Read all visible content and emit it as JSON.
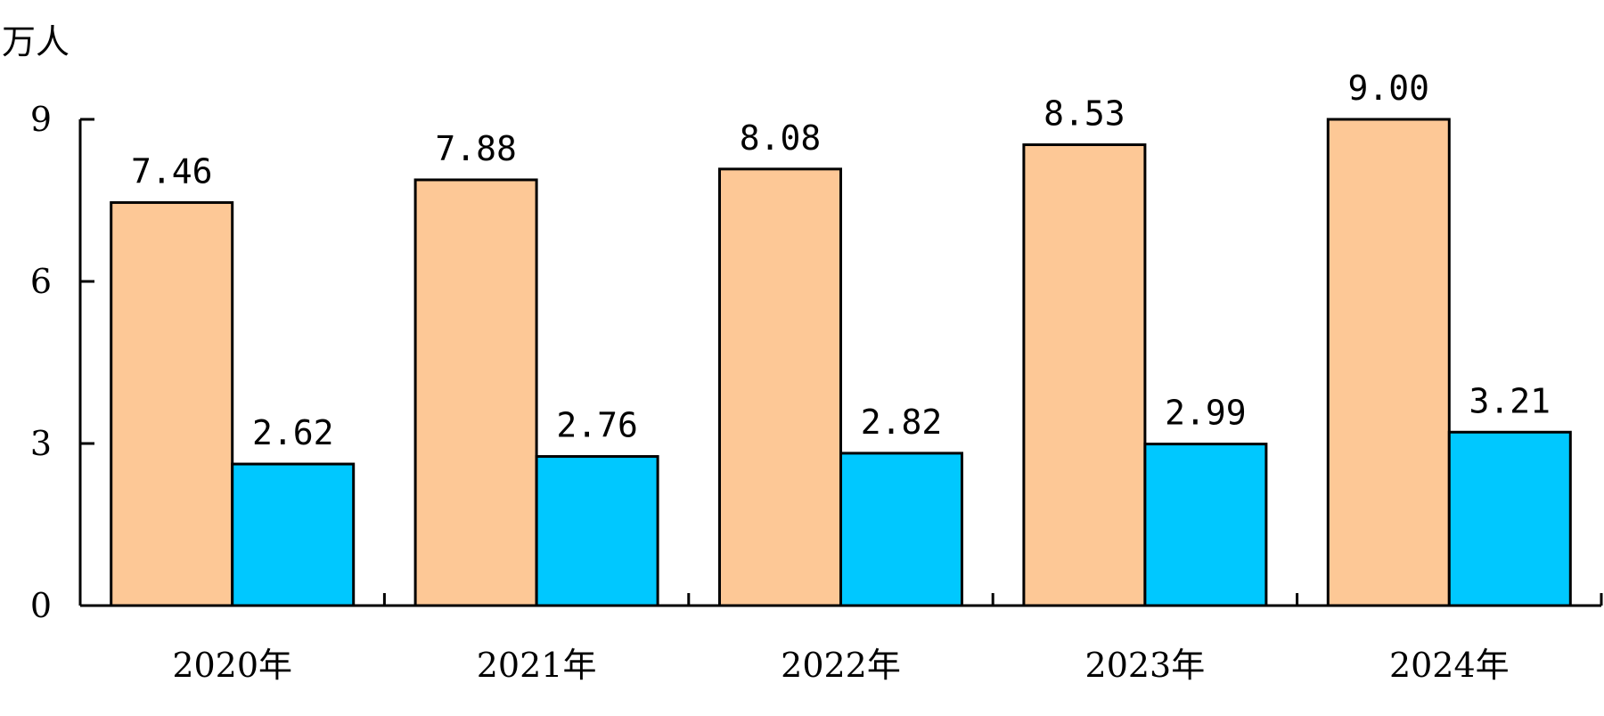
{
  "chart_data": {
    "type": "bar",
    "unit_label": "万人",
    "categories": [
      "2020年",
      "2021年",
      "2022年",
      "2023年",
      "2024年"
    ],
    "series": [
      {
        "values": [
          7.46,
          7.88,
          8.08,
          8.53,
          9.0
        ],
        "labels": [
          "7.46",
          "7.88",
          "8.08",
          "8.53",
          "9.00"
        ],
        "color": "#FDC896"
      },
      {
        "values": [
          2.62,
          2.76,
          2.82,
          2.99,
          3.21
        ],
        "labels": [
          "2.62",
          "2.76",
          "2.82",
          "2.99",
          "3.21"
        ],
        "color": "#00C8FF"
      }
    ],
    "ylim": [
      0,
      9
    ],
    "yticks": [
      0,
      3,
      6,
      9
    ],
    "ytick_labels": [
      "0",
      "3",
      "6",
      "9"
    ],
    "grid": false,
    "legend": "none"
  }
}
